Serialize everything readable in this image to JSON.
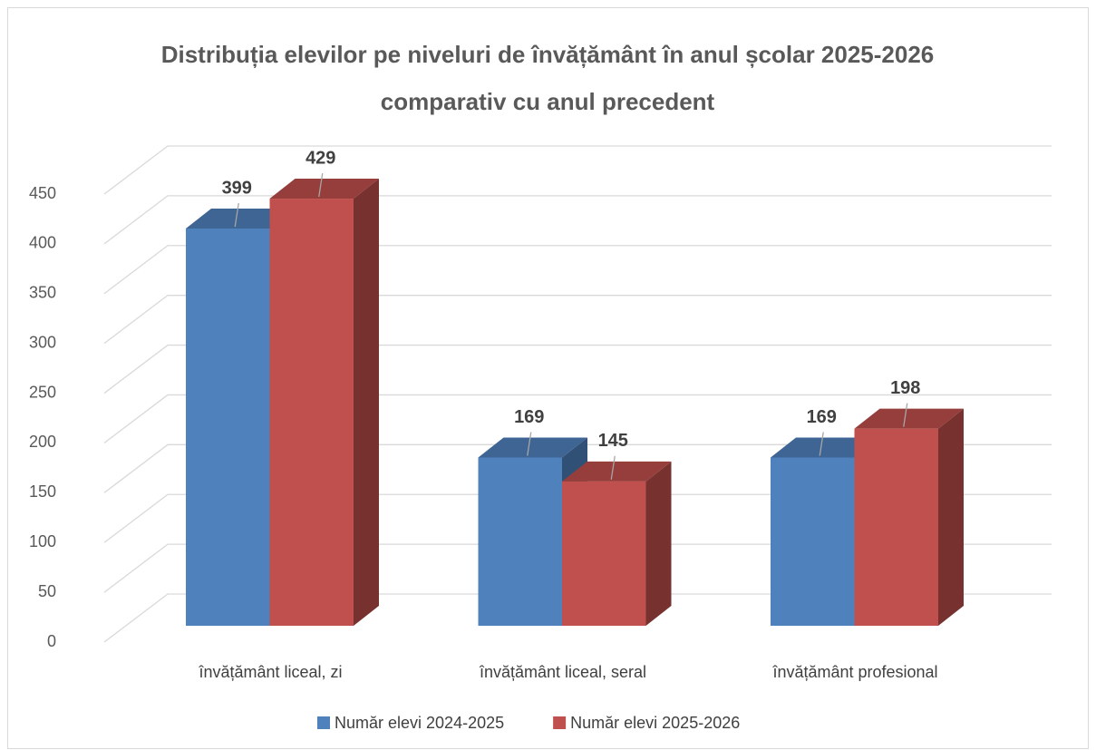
{
  "chart_data": {
    "type": "bar",
    "title": "Distribuția elevilor pe niveluri de învățământ în anul școlar 2025-2026 comparativ cu anul precedent",
    "categories": [
      "învățământ liceal, zi",
      "învățământ liceal, seral",
      "învățământ profesional"
    ],
    "series": [
      {
        "name": "Număr elevi 2024-2025",
        "color": "#4f81bd",
        "values": [
          399,
          169,
          169
        ]
      },
      {
        "name": "Număr elevi 2025-2026",
        "color": "#c0504d",
        "values": [
          429,
          145,
          198
        ]
      }
    ],
    "ylim": [
      0,
      450
    ],
    "yticks": [
      0,
      50,
      100,
      150,
      200,
      250,
      300,
      350,
      400,
      450
    ],
    "grid": true,
    "legend": "bottom",
    "three_d": true
  }
}
